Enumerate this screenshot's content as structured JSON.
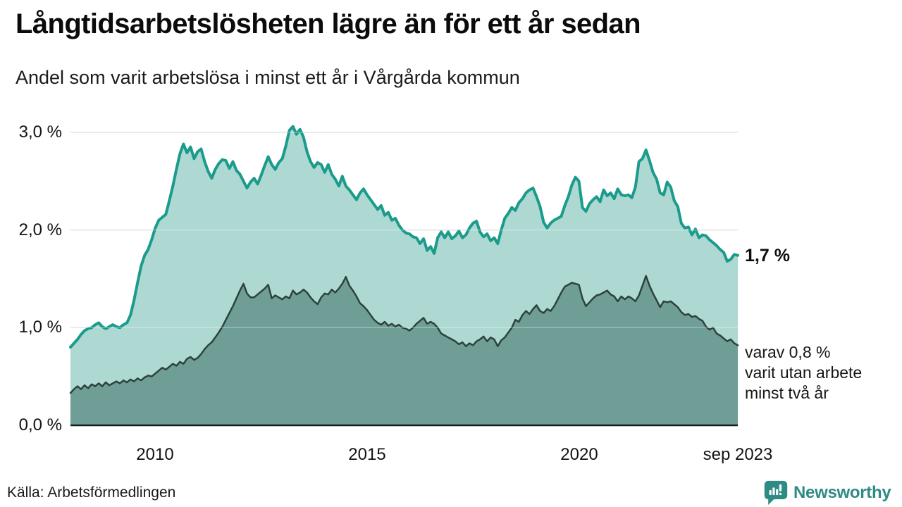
{
  "header": {
    "title": "Långtidsarbetslösheten lägre än för ett år sedan",
    "subtitle": "Andel som varit arbetslösa i minst ett år i Vårgårda kommun"
  },
  "annotations": {
    "end_value_one_year": "1,7 %",
    "note_lines": [
      "varav 0,8 %",
      "varit utan arbete",
      "minst två år"
    ]
  },
  "footer": {
    "source": "Källa: Arbetsförmedlingen",
    "brand": "Newsworthy"
  },
  "colors": {
    "gridline": "#d8d8d8",
    "gridline_over_fill": "rgba(255,255,255,0.30)",
    "baseline": "#131f1d",
    "accent_teal": "#1b9b8c",
    "light_fill": "#aed9d2",
    "dark_fill": "#6f9e97",
    "dark_stroke": "#2d423e",
    "brand_teal": "#2e8b84"
  },
  "chart_data": {
    "type": "area",
    "title": "Långtidsarbetslösheten lägre än för ett år sedan",
    "subtitle": "Andel som varit arbetslösa i minst ett år i Vårgårda kommun",
    "x_domain": [
      2008.0,
      2023.75
    ],
    "ylim": [
      0,
      3.2
    ],
    "grid": true,
    "y_ticks": [
      {
        "value": 0,
        "label": "0,0 %"
      },
      {
        "value": 1,
        "label": "1,0 %"
      },
      {
        "value": 2,
        "label": "2,0 %"
      },
      {
        "value": 3,
        "label": "3,0 %"
      }
    ],
    "x_ticks": [
      {
        "value": 2010,
        "label": "2010"
      },
      {
        "value": 2015,
        "label": "2015"
      },
      {
        "value": 2020,
        "label": "2020"
      },
      {
        "value": 2023.75,
        "label": "sep 2023"
      }
    ],
    "series": [
      {
        "id": "arbetslosa-minst-ett-ar",
        "end_label": "1,7 %",
        "end_value": 1.7,
        "color": "#1b9b8c",
        "fill": "#aed9d2",
        "stroke_width": 4,
        "start_year": 2008.0,
        "step_months": 1,
        "values": [
          0.8,
          0.84,
          0.88,
          0.93,
          0.97,
          0.99,
          1.0,
          1.03,
          1.05,
          1.01,
          0.99,
          1.01,
          1.03,
          1.01,
          1.0,
          1.03,
          1.05,
          1.13,
          1.28,
          1.46,
          1.63,
          1.74,
          1.8,
          1.9,
          2.02,
          2.1,
          2.13,
          2.16,
          2.3,
          2.45,
          2.62,
          2.78,
          2.88,
          2.79,
          2.85,
          2.73,
          2.8,
          2.83,
          2.7,
          2.6,
          2.53,
          2.62,
          2.68,
          2.72,
          2.71,
          2.63,
          2.7,
          2.61,
          2.57,
          2.5,
          2.43,
          2.49,
          2.53,
          2.47,
          2.56,
          2.66,
          2.75,
          2.67,
          2.62,
          2.69,
          2.73,
          2.86,
          3.02,
          3.06,
          2.98,
          3.03,
          2.95,
          2.8,
          2.7,
          2.64,
          2.69,
          2.67,
          2.59,
          2.67,
          2.57,
          2.52,
          2.45,
          2.55,
          2.45,
          2.41,
          2.36,
          2.31,
          2.38,
          2.42,
          2.36,
          2.31,
          2.26,
          2.21,
          2.25,
          2.15,
          2.18,
          2.1,
          2.12,
          2.05,
          2.0,
          1.97,
          1.96,
          1.93,
          1.92,
          1.86,
          1.91,
          1.79,
          1.83,
          1.76,
          1.92,
          1.98,
          1.92,
          1.98,
          1.91,
          1.94,
          1.99,
          1.92,
          1.95,
          2.02,
          2.07,
          2.09,
          1.98,
          1.93,
          1.96,
          1.89,
          1.92,
          1.86,
          2.0,
          2.12,
          2.17,
          2.23,
          2.2,
          2.28,
          2.32,
          2.38,
          2.41,
          2.43,
          2.34,
          2.24,
          2.08,
          2.02,
          2.07,
          2.1,
          2.12,
          2.14,
          2.25,
          2.34,
          2.46,
          2.54,
          2.5,
          2.23,
          2.19,
          2.27,
          2.31,
          2.34,
          2.29,
          2.41,
          2.35,
          2.38,
          2.32,
          2.42,
          2.36,
          2.35,
          2.36,
          2.33,
          2.44,
          2.7,
          2.73,
          2.82,
          2.71,
          2.59,
          2.52,
          2.38,
          2.36,
          2.49,
          2.44,
          2.3,
          2.24,
          2.07,
          2.02,
          2.03,
          1.95,
          2.01,
          1.92,
          1.95,
          1.94,
          1.9,
          1.87,
          1.84,
          1.8,
          1.77,
          1.68,
          1.7,
          1.75,
          1.74
        ]
      },
      {
        "id": "utan-arbete-minst-tva-ar",
        "end_label": "varav 0,8 % varit utan arbete minst två år",
        "end_value": 0.8,
        "color": "#2d423e",
        "fill": "#6f9e97",
        "stroke_width": 2.5,
        "start_year": 2008.0,
        "step_months": 1,
        "values": [
          0.33,
          0.37,
          0.4,
          0.37,
          0.41,
          0.38,
          0.42,
          0.4,
          0.43,
          0.4,
          0.44,
          0.41,
          0.43,
          0.45,
          0.43,
          0.46,
          0.44,
          0.47,
          0.45,
          0.48,
          0.46,
          0.49,
          0.51,
          0.5,
          0.53,
          0.56,
          0.59,
          0.57,
          0.6,
          0.63,
          0.61,
          0.65,
          0.63,
          0.68,
          0.7,
          0.67,
          0.69,
          0.73,
          0.78,
          0.82,
          0.85,
          0.9,
          0.95,
          1.01,
          1.08,
          1.15,
          1.22,
          1.3,
          1.38,
          1.45,
          1.35,
          1.31,
          1.31,
          1.34,
          1.37,
          1.4,
          1.44,
          1.3,
          1.33,
          1.31,
          1.29,
          1.32,
          1.3,
          1.38,
          1.34,
          1.36,
          1.39,
          1.36,
          1.31,
          1.27,
          1.24,
          1.31,
          1.35,
          1.34,
          1.39,
          1.36,
          1.4,
          1.45,
          1.52,
          1.43,
          1.38,
          1.32,
          1.25,
          1.22,
          1.18,
          1.13,
          1.08,
          1.05,
          1.03,
          1.06,
          1.02,
          1.04,
          1.01,
          1.03,
          1.0,
          0.99,
          0.97,
          1.0,
          1.04,
          1.07,
          1.1,
          1.04,
          1.06,
          1.04,
          1.0,
          0.94,
          0.92,
          0.9,
          0.88,
          0.86,
          0.83,
          0.85,
          0.81,
          0.84,
          0.82,
          0.86,
          0.88,
          0.91,
          0.86,
          0.9,
          0.88,
          0.81,
          0.87,
          0.9,
          0.95,
          1.0,
          1.08,
          1.06,
          1.13,
          1.17,
          1.14,
          1.19,
          1.23,
          1.17,
          1.15,
          1.19,
          1.17,
          1.22,
          1.29,
          1.36,
          1.42,
          1.44,
          1.46,
          1.45,
          1.44,
          1.3,
          1.22,
          1.26,
          1.3,
          1.33,
          1.34,
          1.36,
          1.38,
          1.34,
          1.32,
          1.27,
          1.32,
          1.29,
          1.32,
          1.3,
          1.27,
          1.33,
          1.43,
          1.53,
          1.43,
          1.35,
          1.28,
          1.21,
          1.27,
          1.26,
          1.27,
          1.24,
          1.21,
          1.16,
          1.13,
          1.14,
          1.11,
          1.12,
          1.09,
          1.07,
          1.01,
          0.98,
          1.0,
          0.94,
          0.92,
          0.89,
          0.86,
          0.88,
          0.84,
          0.82
        ]
      }
    ]
  }
}
